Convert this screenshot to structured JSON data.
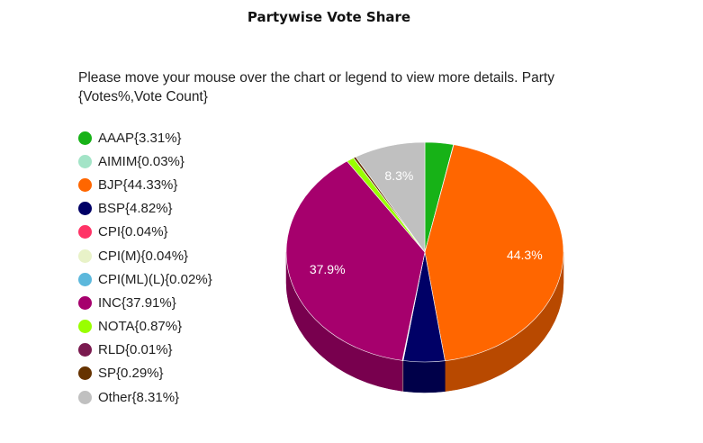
{
  "title": "Partywise Vote Share",
  "instructions": "Please move your mouse over the chart or legend to view more details. Party {Votes%,Vote Count}",
  "legend": [
    {
      "label": "AAAP{3.31%}",
      "color": "#17b217"
    },
    {
      "label": "AIMIM{0.03%}",
      "color": "#a3e4c7"
    },
    {
      "label": "BJP{44.33%}",
      "color": "#ff6600"
    },
    {
      "label": "BSP{4.82%}",
      "color": "#000066"
    },
    {
      "label": "CPI{0.04%}",
      "color": "#ff3366"
    },
    {
      "label": "CPI(M){0.04%}",
      "color": "#e8f2c8"
    },
    {
      "label": "CPI(ML)(L){0.02%}",
      "color": "#5cb8dc"
    },
    {
      "label": "INC{37.91%}",
      "color": "#a6006d"
    },
    {
      "label": "NOTA{0.87%}",
      "color": "#99ff00"
    },
    {
      "label": "RLD{0.01%}",
      "color": "#7a1a4f"
    },
    {
      "label": "SP{0.29%}",
      "color": "#663300"
    },
    {
      "label": "Other{8.31%}",
      "color": "#c0c0c0"
    }
  ],
  "chart_data": {
    "type": "pie",
    "title": "Partywise Vote Share",
    "series": [
      {
        "name": "AAAP",
        "value": 3.31,
        "color": "#17b217"
      },
      {
        "name": "AIMIM",
        "value": 0.03,
        "color": "#a3e4c7"
      },
      {
        "name": "BJP",
        "value": 44.33,
        "color": "#ff6600",
        "data_label": "44.3%"
      },
      {
        "name": "BSP",
        "value": 4.82,
        "color": "#000066"
      },
      {
        "name": "CPI",
        "value": 0.04,
        "color": "#ff3366"
      },
      {
        "name": "CPI(M)",
        "value": 0.04,
        "color": "#e8f2c8"
      },
      {
        "name": "CPI(ML)(L)",
        "value": 0.02,
        "color": "#5cb8dc"
      },
      {
        "name": "INC",
        "value": 37.91,
        "color": "#a6006d",
        "data_label": "37.9%"
      },
      {
        "name": "NOTA",
        "value": 0.87,
        "color": "#99ff00"
      },
      {
        "name": "RLD",
        "value": 0.01,
        "color": "#7a1a4f"
      },
      {
        "name": "SP",
        "value": 0.29,
        "color": "#663300"
      },
      {
        "name": "Other",
        "value": 8.31,
        "color": "#c0c0c0",
        "data_label": "8.3%"
      }
    ],
    "style": "3d",
    "legend": "left"
  }
}
